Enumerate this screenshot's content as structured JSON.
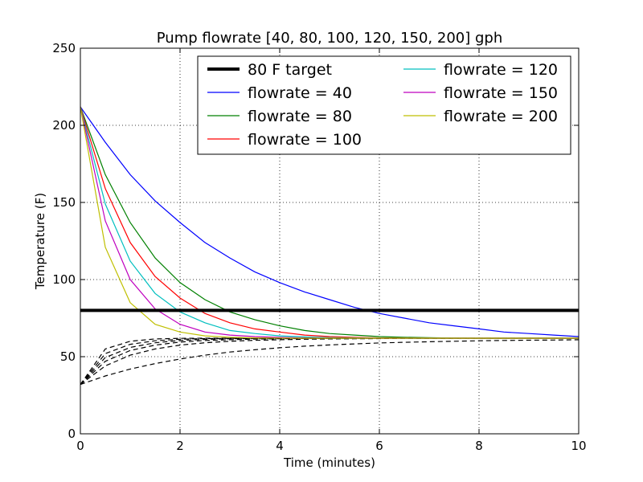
{
  "chart_data": {
    "type": "line",
    "title": "Pump flowrate [40, 80, 100, 120, 150, 200] gph",
    "xlabel": "Time (minutes)",
    "ylabel": "Temperature (F)",
    "xlim": [
      0,
      10
    ],
    "ylim": [
      0,
      250
    ],
    "x_ticks": [
      0,
      2,
      4,
      6,
      8,
      10
    ],
    "y_ticks": [
      0,
      50,
      100,
      150,
      200,
      250
    ],
    "x_tick_labels": [
      "0",
      "2",
      "4",
      "6",
      "8",
      "10"
    ],
    "y_tick_labels": [
      "0",
      "50",
      "100",
      "150",
      "200",
      "250"
    ],
    "grid": true,
    "legend_position": "top-right",
    "legend_columns": 2,
    "x": [
      0,
      0.5,
      1,
      1.5,
      2,
      2.5,
      3,
      3.5,
      4,
      4.5,
      5,
      5.5,
      6,
      6.5,
      7,
      7.5,
      8,
      8.5,
      9,
      9.5,
      10
    ],
    "target": {
      "name": "80 F target",
      "value": 80,
      "color": "#000000"
    },
    "series": [
      {
        "name": "flowrate = 40",
        "color": "#0000ff",
        "values": [
          212,
          189,
          168,
          151,
          137,
          124,
          114,
          105,
          98,
          92,
          87,
          82,
          78,
          75,
          72,
          70,
          68,
          66,
          65,
          64,
          63
        ]
      },
      {
        "name": "flowrate = 80",
        "color": "#008000",
        "values": [
          212,
          168,
          137,
          114,
          98,
          87,
          79,
          74,
          70,
          67,
          65,
          64,
          63,
          62.6,
          62.3,
          62.1,
          62,
          62,
          62,
          62,
          62
        ]
      },
      {
        "name": "flowrate = 100",
        "color": "#ff0000",
        "values": [
          212,
          159,
          124,
          102,
          88,
          78,
          72,
          68,
          66,
          64,
          63,
          62.5,
          62.2,
          62.1,
          62,
          62,
          62,
          62,
          62,
          62,
          62
        ]
      },
      {
        "name": "flowrate = 120",
        "color": "#00bfbf",
        "values": [
          212,
          149,
          112,
          91,
          79,
          72,
          67,
          65,
          63.5,
          62.8,
          62.4,
          62.2,
          62.1,
          62,
          62,
          62,
          62,
          62,
          62,
          62,
          62
        ]
      },
      {
        "name": "flowrate = 150",
        "color": "#bf00bf",
        "values": [
          212,
          138,
          100,
          81,
          71,
          66,
          64,
          63,
          62.5,
          62.2,
          62.1,
          62,
          62,
          62,
          62,
          62,
          62,
          62,
          62,
          62,
          62
        ]
      },
      {
        "name": "flowrate = 200",
        "color": "#bfbf00",
        "values": [
          212,
          121,
          85,
          71,
          66,
          63.5,
          62.6,
          62.2,
          62.1,
          62,
          62,
          62,
          62,
          62,
          62,
          62,
          62,
          62,
          62,
          62,
          62
        ]
      }
    ],
    "dashed_series": [
      {
        "color": "#000000",
        "values": [
          32,
          37.5,
          42,
          45.5,
          48.5,
          51,
          53,
          54.5,
          55.8,
          56.8,
          57.6,
          58.3,
          58.9,
          59.3,
          59.7,
          60,
          60.3,
          60.5,
          60.7,
          60.8,
          61
        ]
      },
      {
        "color": "#000000",
        "values": [
          32,
          44,
          51,
          55,
          57.5,
          59,
          60,
          60.6,
          61,
          61.3,
          61.5,
          61.6,
          61.7,
          61.8,
          61.8,
          61.9,
          61.9,
          61.9,
          62,
          62,
          62
        ]
      },
      {
        "color": "#000000",
        "values": [
          32,
          47,
          54,
          57.5,
          59.5,
          60.5,
          61,
          61.4,
          61.6,
          61.8,
          61.9,
          61.9,
          62,
          62,
          62,
          62,
          62,
          62,
          62,
          62,
          62
        ]
      },
      {
        "color": "#000000",
        "values": [
          32,
          49.5,
          56,
          59,
          60.5,
          61.2,
          61.6,
          61.8,
          61.9,
          62,
          62,
          62,
          62,
          62,
          62,
          62,
          62,
          62,
          62,
          62,
          62
        ]
      },
      {
        "color": "#000000",
        "values": [
          32,
          52,
          58,
          60.3,
          61.3,
          61.7,
          61.9,
          62,
          62,
          62,
          62,
          62,
          62,
          62,
          62,
          62,
          62,
          62,
          62,
          62,
          62
        ]
      },
      {
        "color": "#000000",
        "values": [
          32,
          55,
          60,
          61.5,
          61.9,
          62,
          62,
          62,
          62,
          62,
          62,
          62,
          62,
          62,
          62,
          62,
          62,
          62,
          62,
          62,
          62
        ]
      }
    ]
  }
}
